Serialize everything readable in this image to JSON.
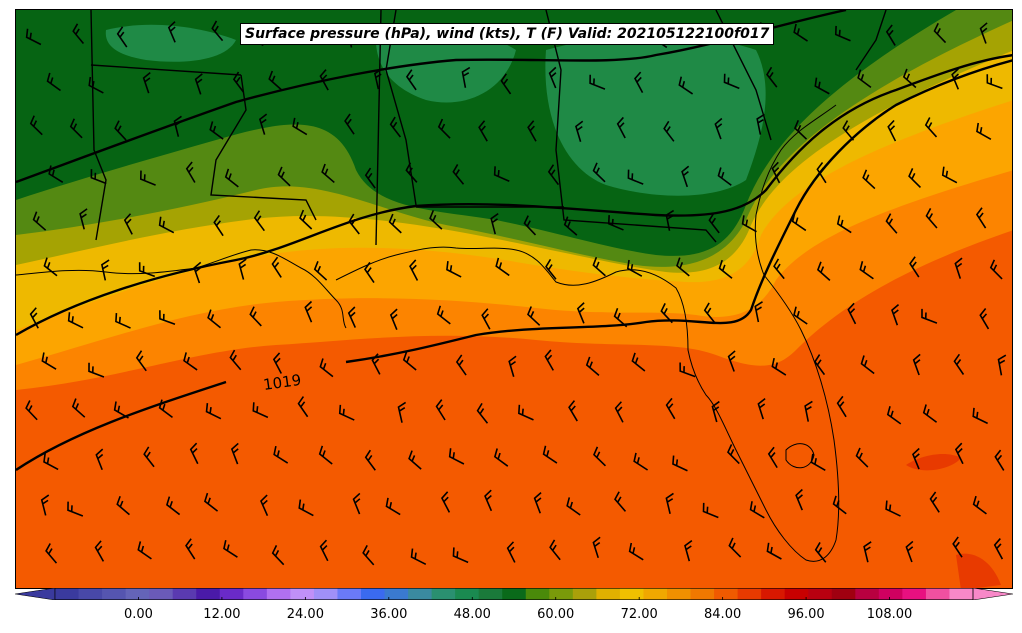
{
  "title": "Surface pressure (hPa), wind (kts), T (F) Valid: 202105122100f017",
  "isobar_label": "1019",
  "colorbar": {
    "min": -12,
    "max": 120,
    "step": 3,
    "tick_labels": [
      "0.00",
      "12.00",
      "24.00",
      "36.00",
      "48.00",
      "60.00",
      "72.00",
      "84.00",
      "96.00",
      "108.00"
    ],
    "colors": [
      "#3a3a9e",
      "#4848a8",
      "#5555b0",
      "#6464b8",
      "#6a5ab8",
      "#5a3ab0",
      "#4a1aa8",
      "#6a2ac8",
      "#8a4ae0",
      "#b070f0",
      "#c090f8",
      "#a090f8",
      "#6a7af8",
      "#3a6af0",
      "#3a7ad0",
      "#3a8aa0",
      "#2a9070",
      "#1a8a50",
      "#1a7a3a",
      "#0a6a1a",
      "#4a8a0a",
      "#7a9a0a",
      "#aaa00a",
      "#e0b000",
      "#f0c000",
      "#f0a800",
      "#f09000",
      "#f07800",
      "#f05a00",
      "#e83a00",
      "#d81800",
      "#c80000",
      "#b80010",
      "#a00010",
      "#b80040",
      "#d00060",
      "#e81080",
      "#f050a0",
      "#f888c8"
    ]
  },
  "map_colors": {
    "dark_green": "#066413",
    "med_green": "#1f8a46",
    "olive": "#548912",
    "yellow_olive": "#a5a303",
    "yellow": "#eeb900",
    "orange_light": "#fca500",
    "orange": "#fc8400",
    "orange_red": "#f45a00"
  }
}
